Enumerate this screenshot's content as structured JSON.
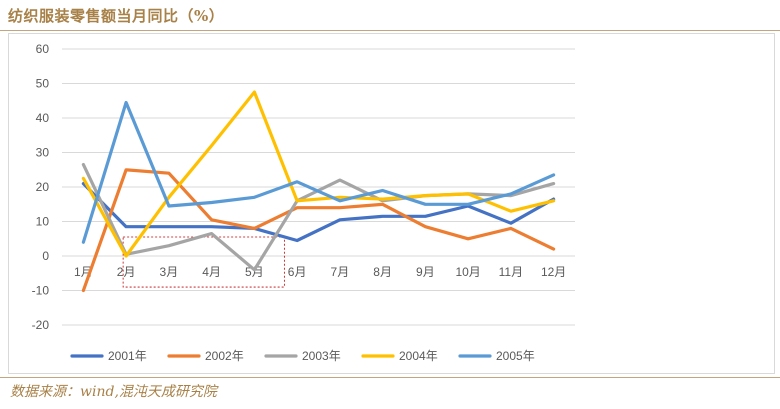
{
  "header": {
    "title": "纺织服装零售额当月同比（%）"
  },
  "footer": {
    "source": "数据来源：wind,混沌天成研究院"
  },
  "chart_data": {
    "type": "line",
    "title": "纺织服装零售额当月同比（%）",
    "xlabel": "",
    "ylabel": "",
    "categories": [
      "1月",
      "2月",
      "3月",
      "4月",
      "5月",
      "6月",
      "7月",
      "8月",
      "9月",
      "10月",
      "11月",
      "12月"
    ],
    "ylim": [
      -20,
      60
    ],
    "yticks": [
      -20,
      -10,
      0,
      10,
      20,
      30,
      40,
      50,
      60
    ],
    "grid": true,
    "legend_position": "bottom",
    "series": [
      {
        "name": "2001年",
        "color": "#4472c4",
        "values": [
          21,
          8.5,
          8.5,
          8.5,
          8,
          4.5,
          10.5,
          11.5,
          11.5,
          14.5,
          9.5,
          16.5
        ]
      },
      {
        "name": "2002年",
        "color": "#ed7d31",
        "values": [
          -10,
          25,
          24,
          10.5,
          8,
          14,
          14,
          15,
          8.5,
          5,
          8,
          2
        ]
      },
      {
        "name": "2003年",
        "color": "#a5a5a5",
        "values": [
          26.5,
          0.5,
          3,
          6.5,
          -4,
          16,
          22,
          16,
          17.5,
          18,
          17.5,
          21
        ]
      },
      {
        "name": "2004年",
        "color": "#ffc000",
        "values": [
          22.5,
          0,
          17,
          32,
          47.5,
          16,
          17,
          16.5,
          17.5,
          18,
          13,
          16
        ]
      },
      {
        "name": "2005年",
        "color": "#5b9bd5",
        "values": [
          4,
          44.5,
          14.5,
          15.5,
          17,
          21.5,
          16,
          19,
          15,
          15,
          18,
          23.5
        ]
      }
    ]
  }
}
